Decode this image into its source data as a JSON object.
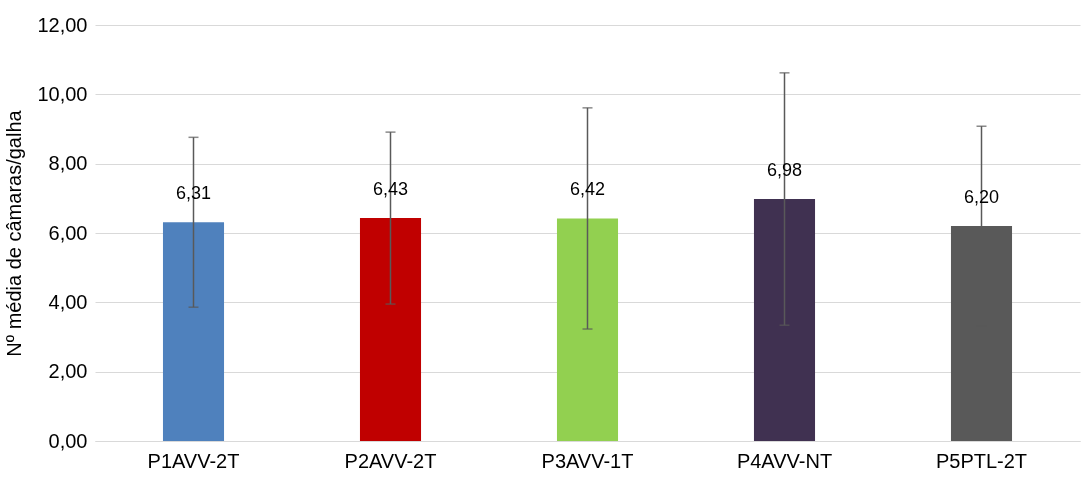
{
  "chart_data": {
    "type": "bar",
    "ylabel": "Nº média de câmaras/galha",
    "categories": [
      "P1AVV-2T",
      "P2AVV-2T",
      "P3AVV-1T",
      "P4AVV-NT",
      "P5PTL-2T"
    ],
    "values": [
      6.31,
      6.43,
      6.42,
      6.98,
      6.2
    ],
    "colors": [
      "#4f81bd",
      "#c00000",
      "#92d050",
      "#403151",
      "#595959"
    ],
    "errors": [
      2.45,
      2.48,
      3.19,
      3.64,
      2.88
    ],
    "value_labels": [
      "6,31",
      "6,43",
      "6,42",
      "6,98",
      "6,20"
    ],
    "ylim": [
      0,
      12
    ],
    "yticks": [
      {
        "value": 0,
        "label": "0,00"
      },
      {
        "value": 2,
        "label": "2,00"
      },
      {
        "value": 4,
        "label": "4,00"
      },
      {
        "value": 6,
        "label": "6,00"
      },
      {
        "value": 8,
        "label": "8,00"
      },
      {
        "value": 10,
        "label": "10,00"
      },
      {
        "value": 12,
        "label": "12,00"
      }
    ],
    "grid": "y"
  }
}
